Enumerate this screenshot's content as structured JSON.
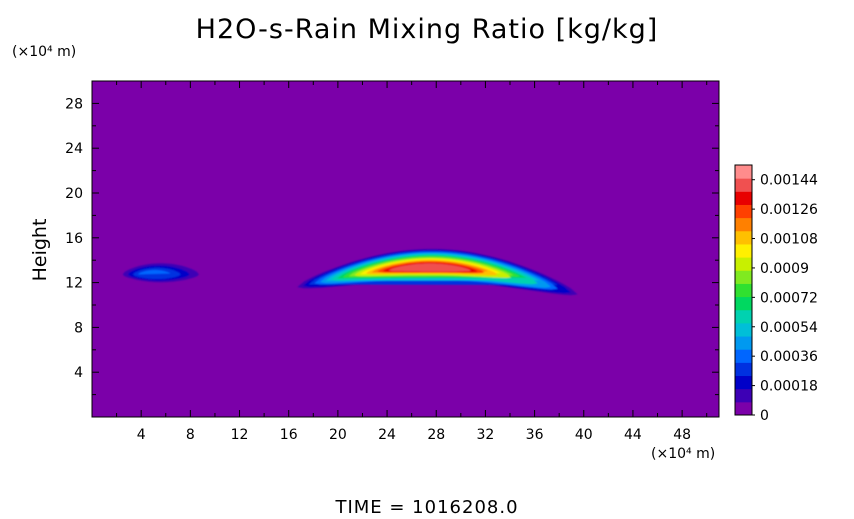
{
  "chart_data": {
    "type": "heatmap",
    "title": "H2O-s-Rain Mixing Ratio [kg/kg]",
    "ylabel": "Height",
    "x_unit": "(×10⁴ m)",
    "y_unit": "(×10⁴ m)",
    "xlim": [
      0,
      51
    ],
    "ylim": [
      0,
      30
    ],
    "x_ticks": [
      4,
      8,
      12,
      16,
      20,
      24,
      28,
      32,
      36,
      40,
      44,
      48
    ],
    "y_ticks": [
      4,
      8,
      12,
      16,
      20,
      24,
      28
    ],
    "colorbar": {
      "min": 0,
      "max": 0.00153,
      "tick_values": [
        0,
        0.00018,
        0.00036,
        0.00054,
        0.00072,
        0.0009,
        0.00108,
        0.00126,
        0.00144
      ],
      "tick_labels": [
        "0",
        "0.00018",
        "0.00036",
        "0.00054",
        "0.00072",
        "0.0009",
        "0.00108",
        "0.00126",
        "0.00144"
      ],
      "colors": [
        "#7b00a9",
        "#3d00b5",
        "#0000c8",
        "#0030e0",
        "#0066ff",
        "#0099f0",
        "#00bfd8",
        "#00d2b0",
        "#00d860",
        "#30e030",
        "#80ea20",
        "#c8f000",
        "#fff000",
        "#ffc000",
        "#ff8000",
        "#ff4000",
        "#e80000",
        "#f05050",
        "#ff8c8c"
      ]
    },
    "regions": [
      {
        "x_start": 2.5,
        "x_end": 8.7,
        "y_min": 11.7,
        "y_max": 14.2,
        "peak_x": 4.5,
        "peak_y": 12.5,
        "peak_value": 0.0003
      },
      {
        "x_start": 16.7,
        "x_end": 39.5,
        "y_min": 11.0,
        "y_max": 15.3,
        "peak_x": 27.0,
        "peak_y": 13.4,
        "peak_value": 0.00138
      }
    ],
    "grid": false,
    "legend": "colorbar-right"
  },
  "footer": {
    "time_text": "TIME  =  1016208.0"
  }
}
